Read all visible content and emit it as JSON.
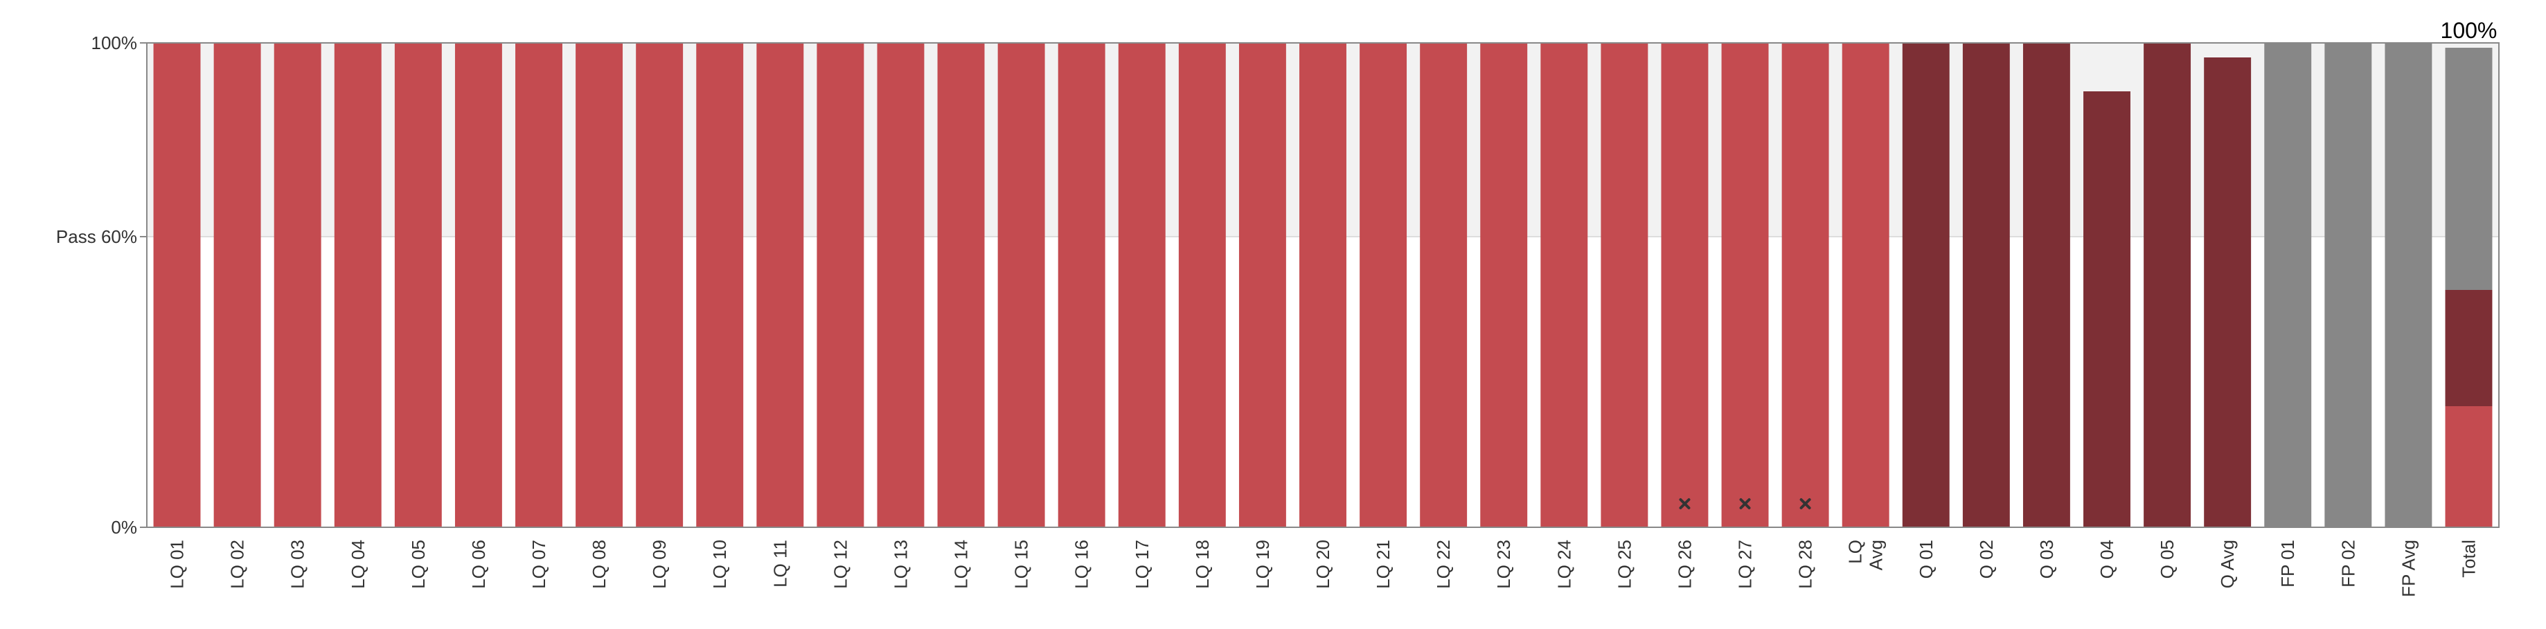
{
  "chart_data": {
    "type": "bar",
    "categories": [
      "LQ 01",
      "LQ 02",
      "LQ 03",
      "LQ 04",
      "LQ 05",
      "LQ 06",
      "LQ 07",
      "LQ 08",
      "LQ 09",
      "LQ 10",
      "LQ 11",
      "LQ 12",
      "LQ 13",
      "LQ 14",
      "LQ 15",
      "LQ 16",
      "LQ 17",
      "LQ 18",
      "LQ 19",
      "LQ 20",
      "LQ 21",
      "LQ 22",
      "LQ 23",
      "LQ 24",
      "LQ 25",
      "LQ 26",
      "LQ 27",
      "LQ 28",
      "LQ Avg",
      "Q 01",
      "Q 02",
      "Q 03",
      "Q 04",
      "Q 05",
      "Q Avg",
      "FP 01",
      "FP 02",
      "FP Avg",
      "Total"
    ],
    "values": [
      100,
      100,
      100,
      100,
      100,
      100,
      100,
      100,
      100,
      100,
      100,
      100,
      100,
      100,
      100,
      100,
      100,
      100,
      100,
      100,
      100,
      100,
      100,
      100,
      100,
      100,
      100,
      100,
      100,
      100,
      100,
      100,
      90,
      100,
      97,
      100,
      100,
      100,
      100
    ],
    "groups": [
      "LQ",
      "LQ",
      "LQ",
      "LQ",
      "LQ",
      "LQ",
      "LQ",
      "LQ",
      "LQ",
      "LQ",
      "LQ",
      "LQ",
      "LQ",
      "LQ",
      "LQ",
      "LQ",
      "LQ",
      "LQ",
      "LQ",
      "LQ",
      "LQ",
      "LQ",
      "LQ",
      "LQ",
      "LQ",
      "LQ",
      "LQ",
      "LQ",
      "LQ",
      "Q",
      "Q",
      "Q",
      "Q",
      "Q",
      "Q",
      "FP",
      "FP",
      "FP",
      "Total"
    ],
    "markers": [
      "LQ 26",
      "LQ 27",
      "LQ 28"
    ],
    "total_stack": [
      {
        "group": "LQ",
        "value": 25
      },
      {
        "group": "Q",
        "value": 24
      },
      {
        "group": "FP",
        "value": 50
      }
    ],
    "total_label": "100%",
    "pass_threshold": 60,
    "ylim": [
      0,
      100
    ],
    "yticks": [
      {
        "value": 0,
        "label": "0%"
      },
      {
        "value": 60,
        "label": "Pass 60%"
      },
      {
        "value": 100,
        "label": "100%"
      }
    ],
    "grid": false,
    "colors": {
      "LQ": "#c44b50",
      "Q": "#7d2f35",
      "FP": "#878787",
      "pass_band": "#f2f2f2",
      "axis": "#888888",
      "marker": "#333333"
    }
  }
}
